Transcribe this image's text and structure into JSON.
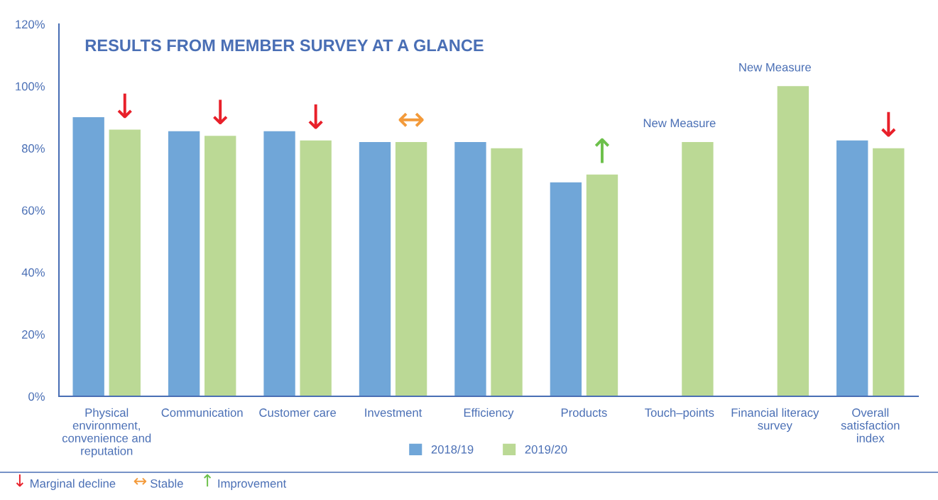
{
  "chart_data": {
    "type": "bar",
    "title": "RESULTS FROM MEMBER SURVEY AT A GLANCE",
    "categories": [
      "Physical\nenvironment,\nconvenience and\nreputation",
      "Communication",
      "Customer care",
      "Investment",
      "Efficiency",
      "Products",
      "Touch–points",
      "Financial literacy\nsurvey",
      "Overall\nsatisfaction\nindex"
    ],
    "series": [
      {
        "name": "2018/19",
        "color": "#70a6d8",
        "values": [
          90,
          85.5,
          85.5,
          82,
          82,
          69,
          null,
          null,
          82.5
        ]
      },
      {
        "name": "2019/20",
        "color": "#bbd995",
        "values": [
          86,
          84,
          82.5,
          82,
          80,
          71.5,
          82,
          100,
          80
        ]
      }
    ],
    "ylim": [
      0,
      120
    ],
    "yticks": [
      {
        "value": 0,
        "label": "0%"
      },
      {
        "value": 20,
        "label": "20%"
      },
      {
        "value": 40,
        "label": "40%"
      },
      {
        "value": 60,
        "label": "60%"
      },
      {
        "value": 80,
        "label": "80%"
      },
      {
        "value": 100,
        "label": "100%"
      },
      {
        "value": 120,
        "label": "120%"
      }
    ],
    "grid": false,
    "legend": "bottom",
    "annotations": [
      {
        "text": "↓",
        "x": "Physical\nenvironment,\nconvenience and\nreputation",
        "y": 86
      },
      {
        "text": "↓",
        "x": "Communication",
        "y": 84
      },
      {
        "text": "↓",
        "x": "Customer care",
        "y": 82.5
      },
      {
        "text": "↔",
        "x": "Investment",
        "y": 82
      },
      {
        "text": "↑",
        "x": "Products",
        "y": 71.5
      },
      {
        "text": "New Measure",
        "x": "Touch–points",
        "y": 82
      },
      {
        "text": "New Measure",
        "x": "Financial literacy\nsurvey",
        "y": 100
      },
      {
        "text": "↓",
        "x": "Overall\nsatisfaction\nindex",
        "y": 80
      },
      "↓ Marginal decline",
      "↔ Stable",
      "↑ Improvement"
    ]
  }
}
